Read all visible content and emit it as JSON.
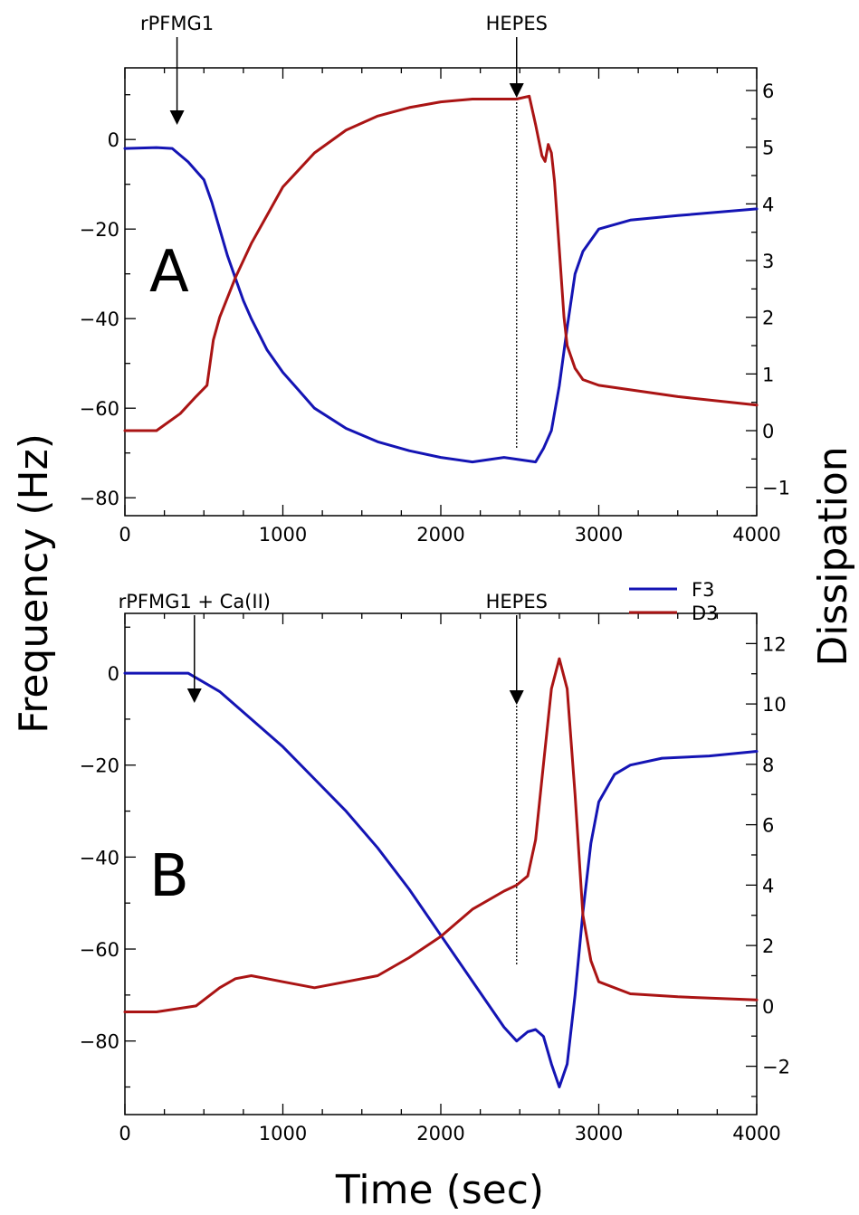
{
  "colors": {
    "F3": "#1414b4",
    "D3": "#aa1414"
  },
  "labels": {
    "ylabel_left": "Frequency (Hz)",
    "ylabel_right": "Dissipation",
    "xlabel": "Time (sec)"
  },
  "legend": {
    "position": "right, between panels",
    "entries": [
      "F3",
      "D3"
    ]
  },
  "chart_data": [
    {
      "panel": "A",
      "type": "line",
      "xlim": [
        0,
        4000
      ],
      "ylim_left": [
        -84,
        16
      ],
      "ylim_right": [
        -1.5,
        6.4
      ],
      "x_ticks": [
        "0",
        "1000",
        "2000",
        "3000",
        "4000"
      ],
      "y_left_ticks": [
        "0",
        "−20",
        "−40",
        "−60",
        "−80"
      ],
      "y_right_ticks": [
        "−1",
        "0",
        "1",
        "2",
        "3",
        "4",
        "5",
        "6"
      ],
      "annotations": [
        {
          "text": "rPFMG1",
          "x": 330
        },
        {
          "text": "HEPES",
          "x": 2480
        }
      ],
      "marker_line_x": 2480,
      "series": [
        {
          "name": "F3",
          "axis": "left",
          "x": [
            0,
            200,
            300,
            400,
            500,
            550,
            600,
            650,
            700,
            750,
            800,
            900,
            1000,
            1100,
            1200,
            1400,
            1600,
            1800,
            2000,
            2200,
            2300,
            2400,
            2500,
            2600,
            2650,
            2700,
            2750,
            2800,
            2850,
            2900,
            3000,
            3200,
            3500,
            4000
          ],
          "y": [
            -2,
            -1.8,
            -2,
            -5,
            -9,
            -14,
            -20,
            -26,
            -31,
            -36,
            -40,
            -47,
            -52,
            -56,
            -60,
            -64.5,
            -67.5,
            -69.5,
            -71,
            -72,
            -71.5,
            -71,
            -71.5,
            -72,
            -69,
            -65,
            -55,
            -42,
            -30,
            -25,
            -20,
            -18,
            -17,
            -15.5
          ]
        },
        {
          "name": "D3",
          "axis": "right",
          "x": [
            0,
            200,
            350,
            450,
            520,
            560,
            600,
            700,
            800,
            900,
            1000,
            1100,
            1200,
            1400,
            1600,
            1800,
            2000,
            2200,
            2400,
            2480,
            2560,
            2600,
            2640,
            2660,
            2680,
            2700,
            2720,
            2750,
            2780,
            2800,
            2850,
            2900,
            3000,
            3500,
            4000
          ],
          "y": [
            0,
            0,
            0.3,
            0.6,
            0.8,
            1.6,
            2.0,
            2.7,
            3.3,
            3.8,
            4.3,
            4.6,
            4.9,
            5.3,
            5.55,
            5.7,
            5.8,
            5.85,
            5.85,
            5.85,
            5.9,
            5.4,
            4.85,
            4.75,
            5.05,
            4.9,
            4.4,
            3.2,
            2.0,
            1.5,
            1.1,
            0.9,
            0.8,
            0.6,
            0.45
          ]
        }
      ]
    },
    {
      "panel": "B",
      "type": "line",
      "xlim": [
        0,
        4000
      ],
      "ylim_left": [
        -96,
        13
      ],
      "ylim_right": [
        -3.6,
        13
      ],
      "x_ticks": [
        "0",
        "1000",
        "2000",
        "3000",
        "4000"
      ],
      "y_left_ticks": [
        "0",
        "−20",
        "−40",
        "−60",
        "−80"
      ],
      "y_right_ticks": [
        "−2",
        "0",
        "2",
        "4",
        "6",
        "8",
        "10",
        "12"
      ],
      "annotations": [
        {
          "text": "rPFMG1 + Ca(II)",
          "x": 440
        },
        {
          "text": "HEPES",
          "x": 2480
        }
      ],
      "marker_line_x": 2480,
      "series": [
        {
          "name": "F3",
          "axis": "left",
          "x": [
            0,
            200,
            400,
            600,
            800,
            1000,
            1200,
            1400,
            1600,
            1800,
            2000,
            2200,
            2400,
            2480,
            2550,
            2600,
            2650,
            2700,
            2750,
            2800,
            2850,
            2900,
            2950,
            3000,
            3100,
            3200,
            3400,
            3700,
            4000
          ],
          "y": [
            0,
            0,
            0,
            -4,
            -10,
            -16,
            -23,
            -30,
            -38,
            -47,
            -57,
            -67,
            -77,
            -80,
            -78,
            -77.5,
            -79,
            -85,
            -90,
            -85,
            -70,
            -52,
            -37,
            -28,
            -22,
            -20,
            -18.5,
            -18,
            -17
          ]
        },
        {
          "name": "D3",
          "axis": "right",
          "x": [
            0,
            200,
            450,
            600,
            700,
            800,
            900,
            1000,
            1200,
            1400,
            1600,
            1800,
            2000,
            2200,
            2400,
            2480,
            2550,
            2600,
            2650,
            2700,
            2750,
            2800,
            2850,
            2900,
            2950,
            3000,
            3200,
            3500,
            4000
          ],
          "y": [
            -0.2,
            -0.2,
            0,
            0.6,
            0.9,
            1.0,
            0.9,
            0.8,
            0.6,
            0.8,
            1.0,
            1.6,
            2.3,
            3.2,
            3.8,
            4.0,
            4.3,
            5.5,
            8.0,
            10.5,
            11.5,
            10.5,
            7.0,
            3.0,
            1.5,
            0.8,
            0.4,
            0.3,
            0.2
          ]
        }
      ]
    }
  ]
}
